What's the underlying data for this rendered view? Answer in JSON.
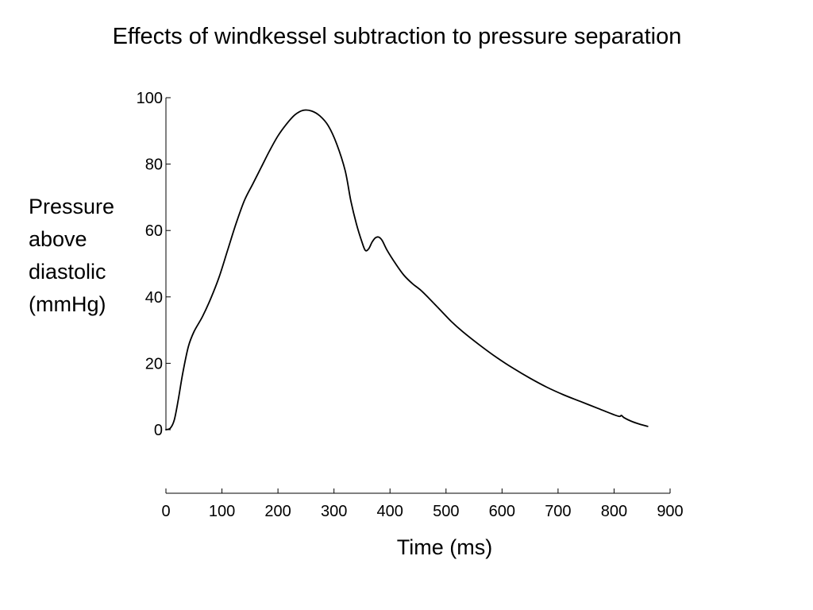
{
  "title": "Effects of windkessel subtraction to pressure separation",
  "chart_data": {
    "type": "line",
    "ylabel_lines": [
      "Pressure",
      "above",
      "diastolic",
      "(mmHg)"
    ],
    "xlabel": "Time (ms)",
    "xlim": [
      0,
      900
    ],
    "ylim": [
      0,
      100
    ],
    "xticks": [
      0,
      100,
      200,
      300,
      400,
      500,
      600,
      700,
      800,
      900
    ],
    "yticks": [
      0,
      20,
      40,
      60,
      80,
      100
    ],
    "grid": false,
    "line_color": "#000000",
    "series": [
      {
        "x": [
          0,
          8,
          15,
          22,
          30,
          40,
          50,
          65,
          80,
          95,
          110,
          125,
          140,
          155,
          170,
          185,
          200,
          215,
          230,
          245,
          260,
          275,
          290,
          305,
          320,
          330,
          340,
          350,
          356,
          362,
          368,
          374,
          380,
          386,
          395,
          410,
          425,
          440,
          455,
          470,
          490,
          510,
          530,
          560,
          590,
          620,
          650,
          680,
          710,
          740,
          770,
          800,
          810,
          813,
          818,
          830,
          845,
          860
        ],
        "y": [
          0,
          0.5,
          3,
          9,
          17,
          25,
          29.5,
          34,
          39.5,
          46,
          54,
          62,
          69,
          74,
          79,
          84,
          88.5,
          92,
          94.8,
          96.2,
          96,
          94.5,
          91.5,
          86,
          78,
          69,
          62,
          56.5,
          54,
          54.5,
          56.5,
          57.8,
          58,
          57,
          54,
          50,
          46.5,
          44,
          42,
          39.5,
          36,
          32.5,
          29.5,
          25.5,
          21.8,
          18.5,
          15.5,
          12.8,
          10.5,
          8.5,
          6.5,
          4.5,
          4,
          4.3,
          3.6,
          2.6,
          1.7,
          1
        ]
      }
    ]
  }
}
